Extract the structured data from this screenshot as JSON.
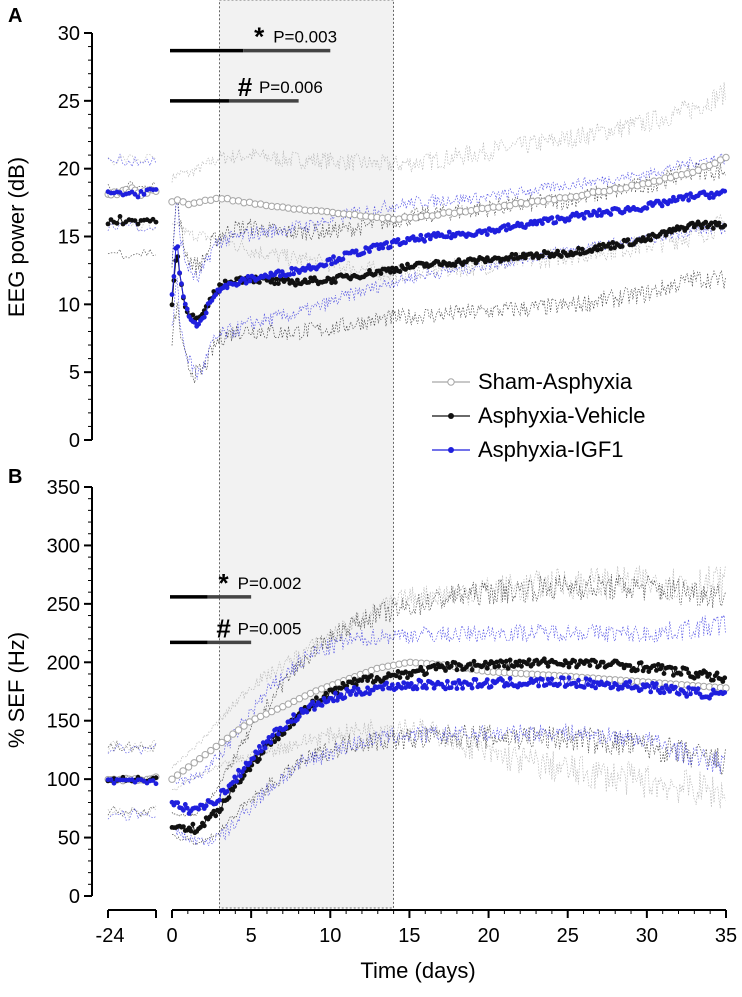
{
  "figure": {
    "x_label": "Time (days)",
    "x_ticks": [
      "-24",
      "0",
      "5",
      "10",
      "15",
      "20",
      "25",
      "30",
      "35"
    ],
    "shaded_region_days": [
      3,
      14
    ],
    "legend": {
      "position": "center-right",
      "entries": [
        {
          "label": "Sham-Asphyxia",
          "color": "#a6a6a6"
        },
        {
          "label": "Asphyxia-Vehicle",
          "color": "#111111"
        },
        {
          "label": "Asphyxia-IGF1",
          "color": "#1f1fdd"
        }
      ]
    }
  },
  "colors": {
    "sham": "#a6a6a6",
    "vehicle": "#111111",
    "igf1": "#1f1fdd",
    "shade": "#f2f2f2"
  },
  "chart_data": [
    {
      "panel": "A",
      "type": "line",
      "ylabel": "EEG power (dB)",
      "ylim": [
        0,
        30
      ],
      "yticks": [
        0,
        5,
        10,
        15,
        20,
        25,
        30
      ],
      "xlim": [
        0,
        35
      ],
      "baseline_x_label": "-24",
      "significance": [
        {
          "symbol": "*",
          "p_text": "P=0.003",
          "x_start": 0,
          "x_end": 10,
          "y": 28.7
        },
        {
          "symbol": "#",
          "p_text": "P=0.006",
          "x_start": 0,
          "x_end": 8,
          "y": 25.0
        }
      ],
      "series": [
        {
          "name": "Sham-Asphyxia",
          "baseline_mean": 18.3,
          "x": [
            0,
            0.5,
            1,
            2,
            3,
            5,
            7,
            10,
            12,
            14,
            16,
            20,
            25,
            30,
            33,
            35
          ],
          "y": [
            17.5,
            17.7,
            17.4,
            17.6,
            17.8,
            17.5,
            17.1,
            16.8,
            16.5,
            16.3,
            16.5,
            17.1,
            17.9,
            18.9,
            19.8,
            20.8
          ],
          "sd": [
            1.8,
            2.0,
            2.2,
            2.6,
            3.0,
            3.5,
            3.6,
            3.8,
            3.9,
            4.0,
            4.0,
            4.2,
            4.3,
            4.5,
            4.7,
            4.8
          ]
        },
        {
          "name": "Asphyxia-Vehicle",
          "baseline_mean": 16.2,
          "x": [
            0,
            0.3,
            0.7,
            1,
            1.5,
            2,
            2.5,
            3,
            4,
            5,
            7,
            10,
            12,
            14,
            16,
            20,
            25,
            30,
            33,
            35
          ],
          "y": [
            10.2,
            14.0,
            10.5,
            9.5,
            8.8,
            9.2,
            10.5,
            11.3,
            11.8,
            11.9,
            11.6,
            11.8,
            12.2,
            12.6,
            12.9,
            13.3,
            13.8,
            14.8,
            15.9,
            15.8
          ],
          "sd": [
            3.0,
            4.0,
            4.0,
            4.0,
            4.0,
            4.0,
            4.0,
            3.8,
            3.8,
            3.8,
            3.7,
            3.6,
            3.5,
            3.6,
            3.7,
            3.8,
            3.9,
            4.0,
            4.0,
            4.0
          ]
        },
        {
          "name": "Asphyxia-IGF1",
          "baseline_mean": 18.2,
          "x": [
            0,
            0.3,
            0.5,
            0.8,
            1.2,
            1.6,
            2.0,
            2.5,
            3,
            4,
            5,
            7,
            9,
            11,
            14,
            16,
            20,
            25,
            30,
            33,
            35
          ],
          "y": [
            10.5,
            15.0,
            12.0,
            10.0,
            9.0,
            8.3,
            9.0,
            10.5,
            11.2,
            11.5,
            11.9,
            12.3,
            12.8,
            13.6,
            14.5,
            14.9,
            15.4,
            16.4,
            17.2,
            18.0,
            18.2
          ],
          "sd": [
            2.5,
            3.0,
            3.2,
            3.3,
            3.4,
            3.5,
            3.6,
            3.5,
            3.5,
            3.4,
            3.3,
            3.2,
            3.1,
            3.0,
            2.8,
            2.7,
            2.5,
            2.4,
            2.4,
            2.5,
            2.6
          ]
        }
      ]
    },
    {
      "panel": "B",
      "type": "line",
      "ylabel": "% SEF (Hz)",
      "ylim": [
        0,
        350
      ],
      "yticks": [
        0,
        50,
        100,
        150,
        200,
        250,
        300,
        350
      ],
      "xlim": [
        0,
        35
      ],
      "baseline_x_label": "-24",
      "significance": [
        {
          "symbol": "*",
          "p_text": "P=0.002",
          "x_start": 0,
          "x_end": 5,
          "y": 256
        },
        {
          "symbol": "#",
          "p_text": "P=0.005",
          "x_start": 0,
          "x_end": 5,
          "y": 217
        }
      ],
      "series": [
        {
          "name": "Sham-Asphyxia",
          "baseline_mean": 100,
          "x": [
            0,
            1,
            2,
            3,
            4,
            5,
            7,
            9,
            11,
            13,
            15,
            17,
            20,
            25,
            30,
            35
          ],
          "y": [
            100,
            110,
            120,
            130,
            140,
            150,
            162,
            175,
            185,
            195,
            200,
            198,
            192,
            188,
            183,
            178
          ],
          "sd": [
            10,
            12,
            15,
            20,
            25,
            30,
            35,
            40,
            45,
            50,
            55,
            60,
            70,
            80,
            85,
            90
          ]
        },
        {
          "name": "Asphyxia-Vehicle",
          "baseline_mean": 100,
          "x": [
            0,
            0.5,
            1,
            1.5,
            2,
            3,
            4,
            5,
            6,
            7,
            8,
            9,
            10,
            11,
            12,
            13,
            14,
            16,
            18,
            20,
            25,
            30,
            33,
            35
          ],
          "y": [
            62,
            58,
            60,
            57,
            62,
            75,
            95,
            112,
            128,
            142,
            155,
            165,
            173,
            180,
            184,
            187,
            189,
            193,
            197,
            198,
            200,
            196,
            190,
            186
          ],
          "sd": [
            10,
            10,
            10,
            12,
            15,
            20,
            25,
            30,
            35,
            40,
            42,
            45,
            48,
            50,
            52,
            54,
            55,
            58,
            60,
            62,
            65,
            68,
            70,
            72
          ]
        },
        {
          "name": "Asphyxia-IGF1",
          "baseline_mean": 98,
          "x": [
            0,
            0.5,
            1,
            1.5,
            2,
            3,
            4,
            5,
            6,
            7,
            8,
            9,
            10,
            11,
            12,
            13,
            14,
            16,
            18,
            20,
            25,
            30,
            33,
            35
          ],
          "y": [
            78,
            76,
            74,
            75,
            76,
            85,
            100,
            118,
            132,
            145,
            155,
            163,
            168,
            173,
            176,
            178,
            180,
            181,
            181,
            182,
            183,
            179,
            174,
            172
          ],
          "sd": [
            20,
            22,
            25,
            27,
            30,
            35,
            38,
            40,
            42,
            43,
            44,
            45,
            45,
            45,
            44,
            44,
            43,
            43,
            43,
            43,
            43,
            45,
            55,
            60
          ]
        }
      ]
    }
  ]
}
